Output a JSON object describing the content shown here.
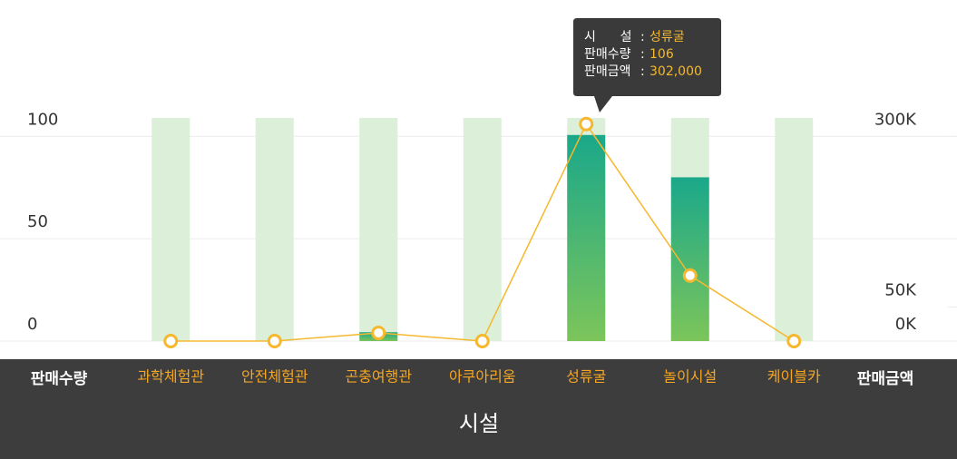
{
  "chart_data": {
    "type": "bar-line",
    "categories": [
      "과학체험관",
      "안전체험관",
      "곤충여행관",
      "아쿠아리움",
      "성류굴",
      "놀이시설",
      "케이블카"
    ],
    "xlabel": "시설",
    "ylabel": "판매수량",
    "y2label": "판매금액",
    "series": [
      {
        "type": "bar",
        "axis": "y2",
        "color": "#20a98a",
        "values": [
          0,
          0,
          13000,
          0,
          302000,
          240000,
          0
        ],
        "value_labels": [
          null,
          null,
          null,
          null,
          "302,000",
          null,
          null
        ]
      },
      {
        "type": "line",
        "axis": "y",
        "color": "#f5b82e",
        "values": [
          0,
          0,
          4,
          0,
          106,
          32,
          0
        ]
      }
    ],
    "ylim": [
      0,
      109
    ],
    "yticks": [
      0,
      50,
      100
    ],
    "y2lim": [
      0,
      327000
    ],
    "y2ticks": [
      {
        "value": 0,
        "label": "0K"
      },
      {
        "value": 50000,
        "label": "50K"
      },
      {
        "value": 300000,
        "label": "300K"
      }
    ],
    "grid": true,
    "tooltip": {
      "index": 4,
      "category_label": "시      설",
      "separator": ":"
    }
  }
}
